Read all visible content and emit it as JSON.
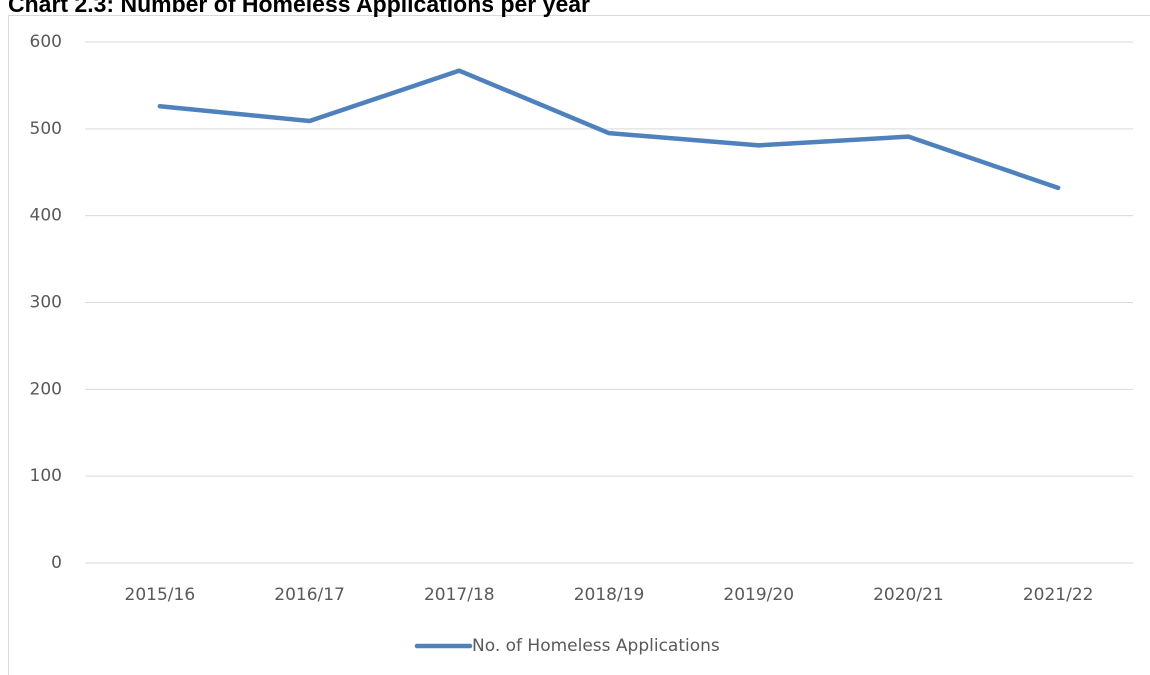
{
  "chart_data": {
    "type": "line",
    "title": "Chart 2.3: Number of Homeless Applications per year",
    "categories": [
      "2015/16",
      "2016/17",
      "2017/18",
      "2018/19",
      "2019/20",
      "2020/21",
      "2021/22"
    ],
    "series": [
      {
        "name": "No. of Homeless Applications",
        "color": "#4f81bd",
        "values": [
          526,
          509,
          567,
          495,
          481,
          491,
          432
        ]
      }
    ],
    "ylim": [
      0,
      600
    ],
    "yticks": [
      0,
      100,
      200,
      300,
      400,
      500,
      600
    ],
    "grid": true,
    "legend": "bottom"
  }
}
